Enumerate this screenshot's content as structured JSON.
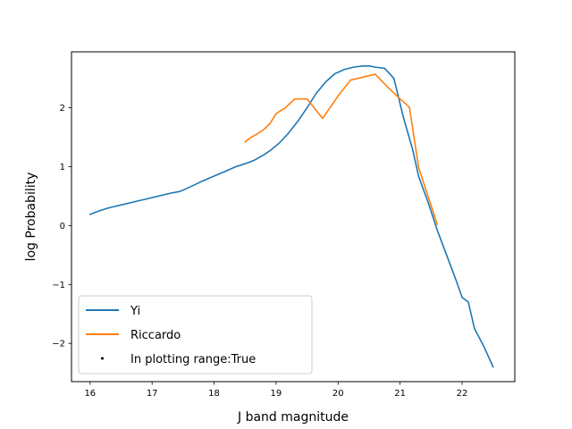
{
  "chart_data": {
    "type": "line",
    "title": "",
    "xlabel": "J band magnitude",
    "ylabel": "log Probability",
    "xlim": [
      15.7,
      22.85
    ],
    "ylim": [
      -2.65,
      2.95
    ],
    "xticks": [
      16,
      17,
      18,
      19,
      20,
      21,
      22
    ],
    "yticks": [
      -2,
      -1,
      0,
      1,
      2
    ],
    "grid": false,
    "legend_position": "lower-left",
    "series": [
      {
        "name": "Yi",
        "color": "#1f77b4",
        "x": [
          16.0,
          16.15,
          16.3,
          16.5,
          16.7,
          16.9,
          17.1,
          17.3,
          17.45,
          17.6,
          17.8,
          18.0,
          18.2,
          18.35,
          18.5,
          18.65,
          18.8,
          18.9,
          19.05,
          19.2,
          19.35,
          19.5,
          19.65,
          19.8,
          19.95,
          20.1,
          20.25,
          20.4,
          20.5,
          20.6,
          20.75,
          20.9,
          21.05,
          21.2,
          21.3,
          21.45,
          21.6,
          21.75,
          21.9,
          22.0,
          22.1,
          22.2,
          22.35,
          22.5
        ],
        "y": [
          0.19,
          0.25,
          0.3,
          0.35,
          0.4,
          0.45,
          0.5,
          0.55,
          0.58,
          0.65,
          0.75,
          0.84,
          0.93,
          1.0,
          1.05,
          1.11,
          1.2,
          1.27,
          1.4,
          1.57,
          1.77,
          2.0,
          2.25,
          2.44,
          2.58,
          2.65,
          2.69,
          2.71,
          2.71,
          2.69,
          2.67,
          2.5,
          1.85,
          1.3,
          0.83,
          0.4,
          -0.08,
          -0.5,
          -0.92,
          -1.22,
          -1.3,
          -1.75,
          -2.05,
          -2.4
        ]
      },
      {
        "name": "Riccardo",
        "color": "#ff7f0e",
        "x": [
          18.5,
          18.6,
          18.7,
          18.8,
          18.9,
          19.0,
          19.15,
          19.3,
          19.5,
          19.75,
          20.0,
          20.2,
          20.4,
          20.6,
          20.8,
          21.0,
          21.15,
          21.3,
          21.45,
          21.6
        ],
        "y": [
          1.42,
          1.5,
          1.56,
          1.63,
          1.73,
          1.9,
          2.0,
          2.15,
          2.15,
          1.82,
          2.2,
          2.47,
          2.52,
          2.57,
          2.35,
          2.15,
          2.01,
          0.98,
          0.5,
          0.02
        ]
      }
    ],
    "extra_legend_entries": [
      {
        "name": "In plotting range:True",
        "marker": "point",
        "color": "#000000"
      }
    ]
  }
}
